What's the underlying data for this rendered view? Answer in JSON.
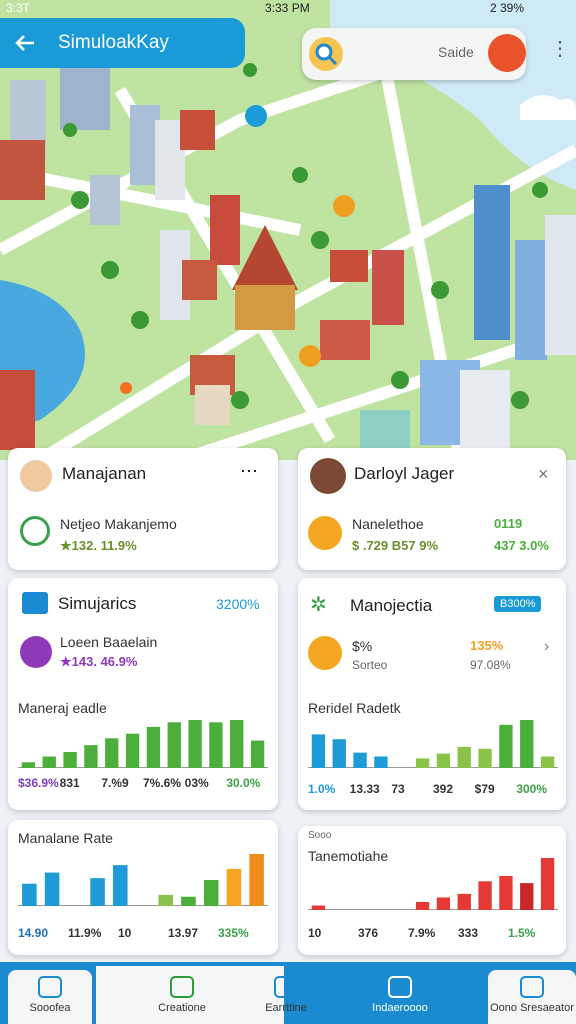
{
  "status_bar": {
    "left": "3:3T",
    "time": "3:33 PM",
    "right": "2 39%"
  },
  "header": {
    "title": "SimuloakKay",
    "search": "Saide"
  },
  "cards": [
    {
      "title": "Manajanan",
      "item": "Netjeo Makanjemo",
      "stat": "★132. 11.9%"
    },
    {
      "title": "Darloyl Jager",
      "item": "Nanelethoe",
      "stat": "$ .729 B57 9%",
      "value": "0119",
      "change": "437 3.0%"
    },
    {
      "title": "Simujarics",
      "value": "3200%",
      "item": "Loeen Baaelain",
      "stat": "★143. 46.9%",
      "chart": {
        "title": "Maneraj eadle",
        "values": [
          5,
          10,
          14,
          20,
          26,
          30,
          36,
          40,
          42,
          40,
          42,
          24
        ],
        "colors": [
          "#4caf3c",
          "#4caf3c",
          "#4caf3c",
          "#4caf3c",
          "#4caf3c",
          "#4caf3c",
          "#4caf3c",
          "#4caf3c",
          "#4caf3c",
          "#4caf3c",
          "#4caf3c",
          "#4caf3c"
        ],
        "labels": [
          "$36.9%",
          "831",
          "7.%9",
          "7%.6%",
          "03%",
          "30.0%"
        ]
      }
    },
    {
      "title": "Manojectia",
      "badge": "B300%",
      "item": "$%",
      "item_sub": "Sorteo",
      "value": "135%",
      "change": "97.08%",
      "chart": {
        "title": "Reridel Radetk",
        "values": [
          35,
          30,
          16,
          12,
          0,
          10,
          15,
          22,
          20,
          45,
          50,
          12
        ],
        "colors": [
          "#1e9ad6",
          "#1e9ad6",
          "#1e9ad6",
          "#1e9ad6",
          "#8bc34a",
          "#8bc34a",
          "#8bc34a",
          "#8bc34a",
          "#8bc34a",
          "#4caf3c",
          "#4caf3c",
          "#8bc34a"
        ],
        "labels": [
          "1.0%",
          "13.33",
          "73",
          "392",
          "$79",
          "300%"
        ]
      }
    },
    {
      "chart": {
        "title": "Manalane Rate",
        "values": [
          24,
          36,
          0,
          30,
          44,
          0,
          12,
          10,
          28,
          40,
          56
        ],
        "colors": [
          "#1e9ad6",
          "#1e9ad6",
          "#1e9ad6",
          "#1e9ad6",
          "#1e9ad6",
          "#8bc34a",
          "#8bc34a",
          "#4caf3c",
          "#4caf3c",
          "#f5a623",
          "#f08c1a"
        ],
        "labels": [
          "14.90",
          "11.9%",
          "10",
          "13.97",
          "335%"
        ]
      }
    },
    {
      "note": "Sooo",
      "chart": {
        "title": "Tanemotiahe",
        "values": [
          5,
          0,
          0,
          0,
          0,
          9,
          14,
          18,
          32,
          38,
          30,
          58
        ],
        "colors": [
          "#e53935",
          "#e53935",
          "#e53935",
          "#e53935",
          "#e53935",
          "#e53935",
          "#e53935",
          "#e53935",
          "#e53935",
          "#e53935",
          "#c62828",
          "#e53935"
        ],
        "labels": [
          "10",
          "376",
          "7.9%",
          "333",
          "1.5%"
        ]
      }
    }
  ],
  "nav": [
    "Sooofea",
    "Creatione",
    "Earrttine",
    "Indaeroooo",
    "Oono Sresaeator"
  ]
}
